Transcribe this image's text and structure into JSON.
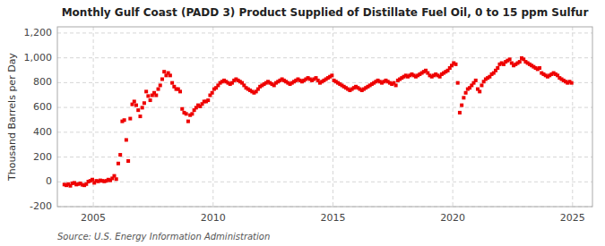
{
  "chart_data": {
    "type": "scatter",
    "title": "Monthly Gulf Coast (PADD 3) Product Supplied of Distillate Fuel Oil, 0 to 15 ppm Sulfur",
    "ylabel": "Thousand Barrels per Day",
    "source": "Source: U.S. Energy Information Administration",
    "color": "#EE0000",
    "marker": "square",
    "grid": true,
    "xlim": [
      2003.5,
      2025.83
    ],
    "ylim": [
      -200,
      1250
    ],
    "xticks": [
      2005,
      2010,
      2015,
      2020,
      2025
    ],
    "yticks": [
      -200,
      0,
      200,
      400,
      600,
      800,
      {
        "value": 1000,
        "label": "1,000"
      },
      {
        "value": 1200,
        "label": "1,200"
      }
    ],
    "x": [
      2003.7916666666667,
      2003.875,
      2003.9583333333333,
      2004.0416666666667,
      2004.125,
      2004.2083333333333,
      2004.2916666666667,
      2004.375,
      2004.4583333333333,
      2004.5416666666667,
      2004.625,
      2004.7083333333333,
      2004.7916666666667,
      2004.875,
      2004.9583333333333,
      2005.0416666666667,
      2005.125,
      2005.2083333333333,
      2005.2916666666667,
      2005.375,
      2005.4583333333333,
      2005.5416666666667,
      2005.625,
      2005.7083333333333,
      2005.7916666666667,
      2005.875,
      2005.9583333333333,
      2006.0416666666667,
      2006.125,
      2006.2083333333333,
      2006.2916666666667,
      2006.375,
      2006.4583333333333,
      2006.5416666666667,
      2006.625,
      2006.7083333333333,
      2006.7916666666667,
      2006.875,
      2006.9583333333333,
      2007.0416666666667,
      2007.125,
      2007.2083333333333,
      2007.2916666666667,
      2007.375,
      2007.4583333333333,
      2007.5416666666667,
      2007.625,
      2007.7083333333333,
      2007.7916666666667,
      2007.875,
      2007.9583333333333,
      2008.0416666666667,
      2008.125,
      2008.2083333333333,
      2008.2916666666667,
      2008.375,
      2008.4583333333333,
      2008.5416666666667,
      2008.625,
      2008.7083333333333,
      2008.7916666666667,
      2008.875,
      2008.9583333333333,
      2009.0416666666667,
      2009.125,
      2009.2083333333333,
      2009.2916666666667,
      2009.375,
      2009.4583333333333,
      2009.5416666666667,
      2009.625,
      2009.7083333333333,
      2009.7916666666667,
      2009.875,
      2009.9583333333333,
      2010.0416666666667,
      2010.125,
      2010.2083333333333,
      2010.2916666666667,
      2010.375,
      2010.4583333333333,
      2010.5416666666667,
      2010.625,
      2010.7083333333333,
      2010.7916666666667,
      2010.875,
      2010.9583333333333,
      2011.0416666666667,
      2011.125,
      2011.2083333333333,
      2011.2916666666667,
      2011.375,
      2011.4583333333333,
      2011.5416666666667,
      2011.625,
      2011.7083333333333,
      2011.7916666666667,
      2011.875,
      2011.9583333333333,
      2012.0416666666667,
      2012.125,
      2012.2083333333333,
      2012.2916666666667,
      2012.375,
      2012.4583333333333,
      2012.5416666666667,
      2012.625,
      2012.7083333333333,
      2012.7916666666667,
      2012.875,
      2012.9583333333333,
      2013.0416666666667,
      2013.125,
      2013.2083333333333,
      2013.2916666666667,
      2013.375,
      2013.4583333333333,
      2013.5416666666667,
      2013.625,
      2013.7083333333333,
      2013.7916666666667,
      2013.875,
      2013.9583333333333,
      2014.0416666666667,
      2014.125,
      2014.2083333333333,
      2014.2916666666667,
      2014.375,
      2014.4583333333333,
      2014.5416666666667,
      2014.625,
      2014.7083333333333,
      2014.7916666666667,
      2014.875,
      2014.9583333333333,
      2015.0416666666667,
      2015.125,
      2015.2083333333333,
      2015.2916666666667,
      2015.375,
      2015.4583333333333,
      2015.5416666666667,
      2015.625,
      2015.7083333333333,
      2015.7916666666667,
      2015.875,
      2015.9583333333333,
      2016.0416666666667,
      2016.125,
      2016.2083333333333,
      2016.2916666666667,
      2016.375,
      2016.4583333333333,
      2016.5416666666667,
      2016.625,
      2016.7083333333333,
      2016.7916666666667,
      2016.875,
      2016.9583333333333,
      2017.0416666666667,
      2017.125,
      2017.2083333333333,
      2017.2916666666667,
      2017.375,
      2017.4583333333333,
      2017.5416666666667,
      2017.625,
      2017.7083333333333,
      2017.7916666666667,
      2017.875,
      2017.9583333333333,
      2018.0416666666667,
      2018.125,
      2018.2083333333333,
      2018.2916666666667,
      2018.375,
      2018.4583333333333,
      2018.5416666666667,
      2018.625,
      2018.7083333333333,
      2018.7916666666667,
      2018.875,
      2018.9583333333333,
      2019.0416666666667,
      2019.125,
      2019.2083333333333,
      2019.2916666666667,
      2019.375,
      2019.4583333333333,
      2019.5416666666667,
      2019.625,
      2019.7083333333333,
      2019.7916666666667,
      2019.875,
      2019.9583333333333,
      2020.0416666666667,
      2020.125,
      2020.2083333333333,
      2020.2916666666667,
      2020.375,
      2020.4583333333333,
      2020.5416666666667,
      2020.625,
      2020.7083333333333,
      2020.7916666666667,
      2020.875,
      2020.9583333333333,
      2021.0416666666667,
      2021.125,
      2021.2083333333333,
      2021.2916666666667,
      2021.375,
      2021.4583333333333,
      2021.5416666666667,
      2021.625,
      2021.7083333333333,
      2021.7916666666667,
      2021.875,
      2021.9583333333333,
      2022.0416666666667,
      2022.125,
      2022.2083333333333,
      2022.2916666666667,
      2022.375,
      2022.4583333333333,
      2022.5416666666667,
      2022.625,
      2022.7083333333333,
      2022.7916666666667,
      2022.875,
      2022.9583333333333,
      2023.0416666666667,
      2023.125,
      2023.2083333333333,
      2023.2916666666667,
      2023.375,
      2023.4583333333333,
      2023.5416666666667,
      2023.625,
      2023.7083333333333,
      2023.7916666666667,
      2023.875,
      2023.9583333333333,
      2024.0416666666667,
      2024.125,
      2024.2083333333333,
      2024.2916666666667,
      2024.375,
      2024.4583333333333,
      2024.5416666666667,
      2024.625,
      2024.7083333333333,
      2024.7916666666667,
      2024.875,
      2024.9583333333333
    ],
    "values": [
      -22,
      -28,
      -18,
      -32,
      -12,
      -8,
      -22,
      -18,
      -12,
      -24,
      -28,
      -18,
      2,
      8,
      18,
      -8,
      8,
      4,
      12,
      8,
      4,
      8,
      18,
      12,
      28,
      48,
      22,
      148,
      218,
      488,
      498,
      338,
      168,
      510,
      625,
      648,
      618,
      578,
      528,
      598,
      635,
      728,
      692,
      658,
      698,
      718,
      698,
      748,
      778,
      828,
      888,
      858,
      878,
      858,
      798,
      768,
      748,
      748,
      728,
      588,
      558,
      548,
      488,
      538,
      548,
      578,
      598,
      618,
      608,
      628,
      648,
      648,
      658,
      698,
      718,
      748,
      758,
      778,
      798,
      808,
      818,
      808,
      798,
      788,
      798,
      818,
      828,
      818,
      808,
      798,
      778,
      758,
      748,
      738,
      728,
      718,
      728,
      748,
      768,
      778,
      788,
      798,
      808,
      798,
      788,
      778,
      798,
      808,
      818,
      828,
      818,
      808,
      798,
      788,
      798,
      808,
      818,
      828,
      818,
      808,
      818,
      828,
      838,
      828,
      818,
      828,
      838,
      818,
      798,
      808,
      818,
      828,
      838,
      848,
      858,
      818,
      808,
      798,
      788,
      778,
      768,
      758,
      748,
      738,
      748,
      758,
      768,
      758,
      748,
      738,
      748,
      758,
      768,
      778,
      788,
      798,
      808,
      818,
      808,
      798,
      808,
      818,
      808,
      798,
      788,
      798,
      778,
      818,
      828,
      838,
      848,
      858,
      848,
      858,
      868,
      858,
      848,
      858,
      868,
      878,
      888,
      898,
      878,
      858,
      848,
      858,
      868,
      858,
      848,
      868,
      878,
      888,
      898,
      918,
      938,
      958,
      948,
      798,
      558,
      618,
      678,
      718,
      748,
      758,
      778,
      798,
      818,
      748,
      728,
      778,
      808,
      828,
      838,
      848,
      868,
      878,
      898,
      918,
      948,
      958,
      948,
      968,
      978,
      988,
      958,
      938,
      948,
      958,
      968,
      998,
      988,
      968,
      958,
      948,
      938,
      928,
      918,
      908,
      918,
      878,
      868,
      858,
      848,
      858,
      868,
      878,
      868,
      858,
      838,
      828,
      818,
      808,
      798,
      808,
      798
    ]
  }
}
